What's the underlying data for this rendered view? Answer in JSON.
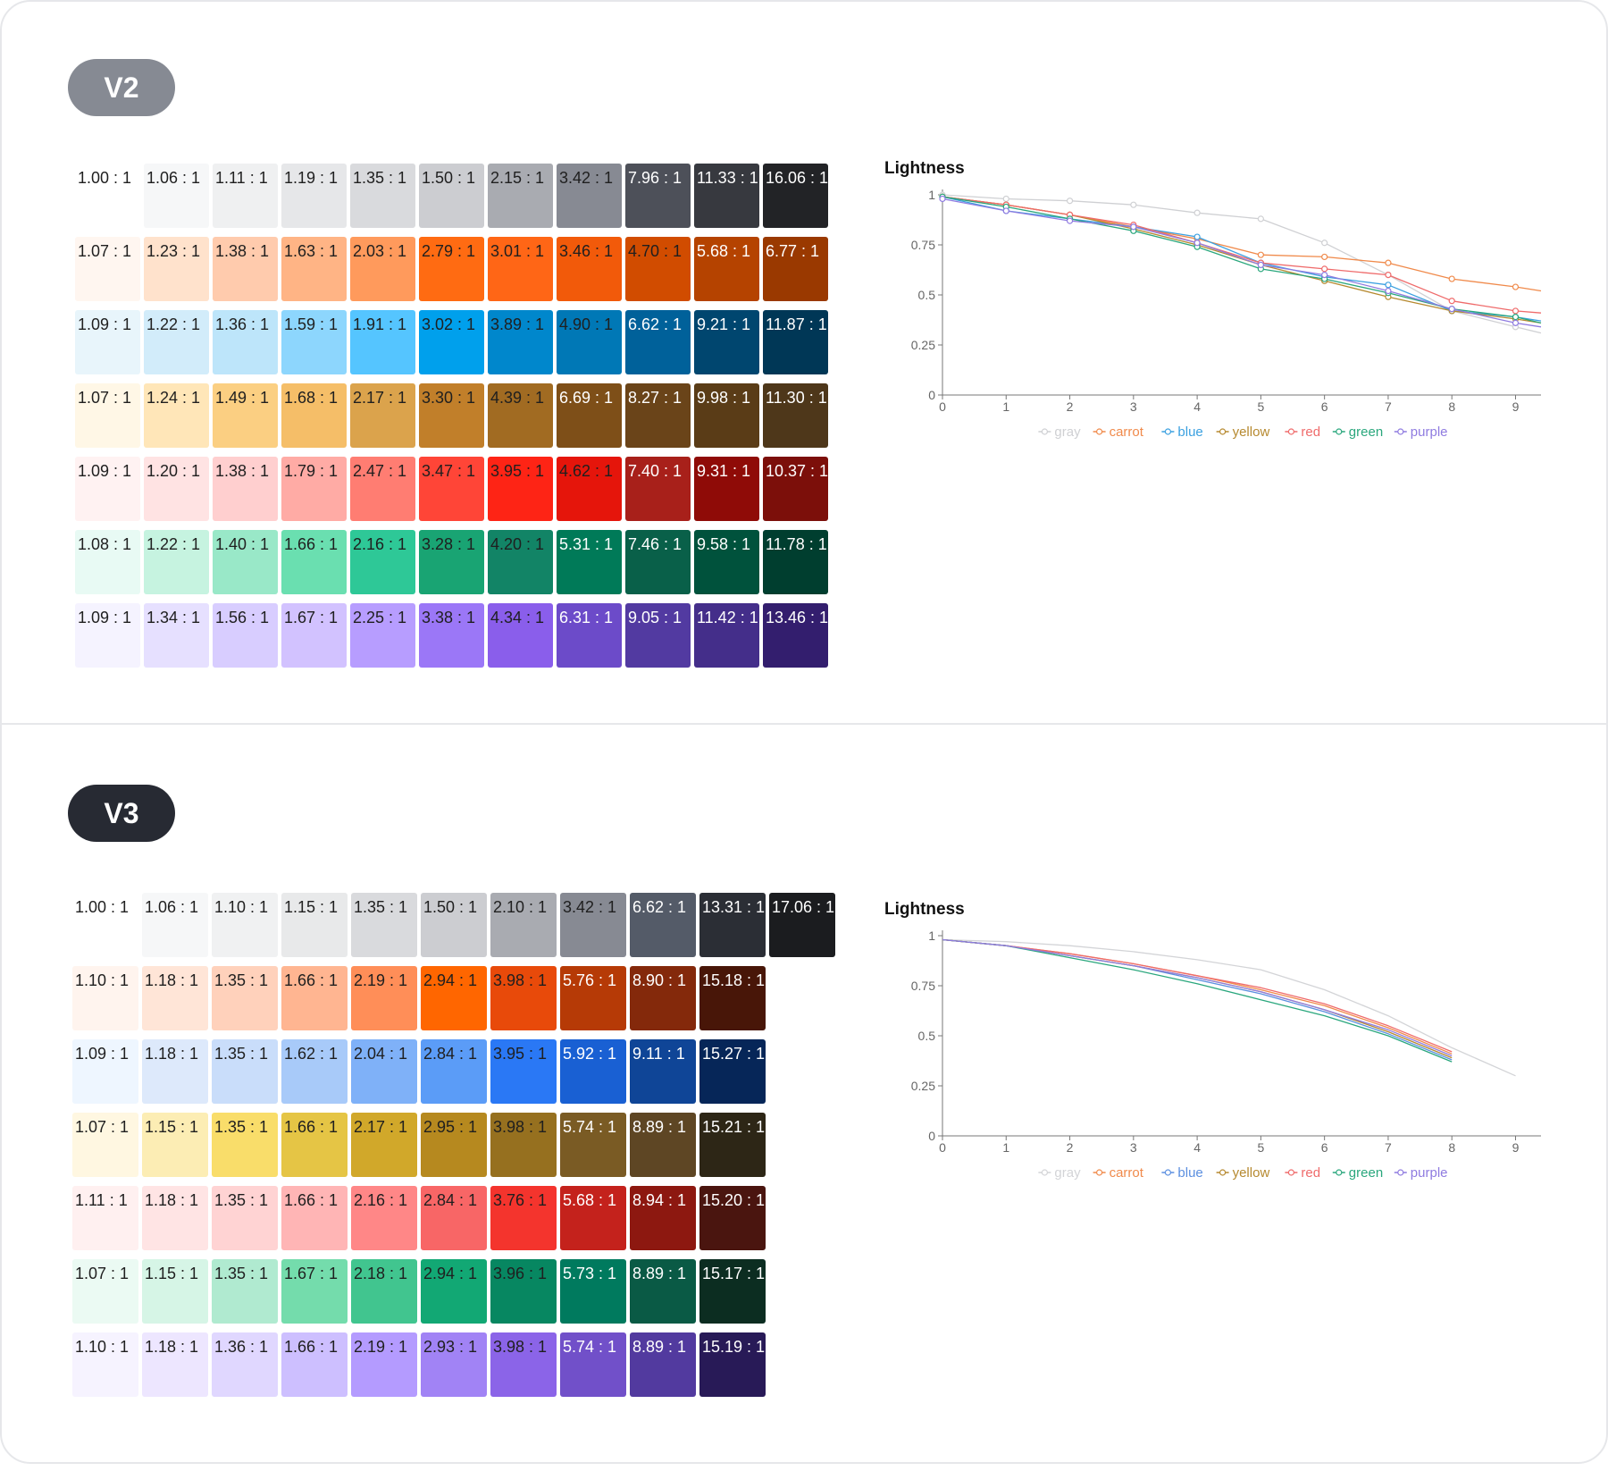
{
  "v2": {
    "badge": "V2",
    "badge_color": "#868a93",
    "rows": [
      {
        "name": "gray",
        "colors": [
          "#ffffff",
          "#f6f7f8",
          "#eff0f1",
          "#e6e7e9",
          "#d9dadd",
          "#cccdd1",
          "#a9abb1",
          "#878a93",
          "#4d5059",
          "#37393f",
          "#222326"
        ],
        "ratios": [
          "1.00 : 1",
          "1.06 : 1",
          "1.11 : 1",
          "1.19 : 1",
          "1.35 : 1",
          "1.50 : 1",
          "2.15 : 1",
          "3.42 : 1",
          "7.96 : 1",
          "11.33 : 1",
          "16.06 : 1"
        ]
      },
      {
        "name": "carrot",
        "colors": [
          "#fff6f0",
          "#ffe2cc",
          "#ffcbad",
          "#ffb485",
          "#ff9a5c",
          "#ff6b12",
          "#ff6616",
          "#f25a0a",
          "#d14c00",
          "#b54300",
          "#9a3900"
        ],
        "ratios": [
          "1.07 : 1",
          "1.23 : 1",
          "1.38 : 1",
          "1.63 : 1",
          "2.03 : 1",
          "2.79 : 1",
          "3.01 : 1",
          "3.46 : 1",
          "4.70 : 1",
          "5.68 : 1",
          "6.77 : 1"
        ]
      },
      {
        "name": "blue",
        "colors": [
          "#e8f5fb",
          "#d2ecfa",
          "#bde5fa",
          "#8dd6fd",
          "#55c5ff",
          "#00a0ec",
          "#0087cc",
          "#0078b6",
          "#00619a",
          "#00466f",
          "#003756"
        ],
        "ratios": [
          "1.09 : 1",
          "1.22 : 1",
          "1.36 : 1",
          "1.59 : 1",
          "1.91 : 1",
          "3.02 : 1",
          "3.89 : 1",
          "4.90 : 1",
          "6.62 : 1",
          "9.21 : 1",
          "11.87 : 1"
        ]
      },
      {
        "name": "yellow",
        "colors": [
          "#fff7e6",
          "#ffe6b8",
          "#fbcf82",
          "#f5be68",
          "#dba34c",
          "#c17f2a",
          "#a16b22",
          "#7e4f18",
          "#6a4419",
          "#5a3c17",
          "#4e371a"
        ],
        "ratios": [
          "1.07 : 1",
          "1.24 : 1",
          "1.49 : 1",
          "1.68 : 1",
          "2.17 : 1",
          "3.30 : 1",
          "4.39 : 1",
          "6.69 : 1",
          "8.27 : 1",
          "9.98 : 1",
          "11.30 : 1"
        ]
      },
      {
        "name": "red",
        "colors": [
          "#fff2f2",
          "#ffe3e3",
          "#ffcfcf",
          "#ffaba5",
          "#ff7d72",
          "#ff4537",
          "#fe2415",
          "#e5150b",
          "#a8201a",
          "#8f0b07",
          "#7c0f0a"
        ],
        "ratios": [
          "1.09 : 1",
          "1.20 : 1",
          "1.38 : 1",
          "1.79 : 1",
          "2.47 : 1",
          "3.47 : 1",
          "3.95 : 1",
          "4.62 : 1",
          "7.40 : 1",
          "9.31 : 1",
          "10.37 : 1"
        ]
      },
      {
        "name": "green",
        "colors": [
          "#e8faf4",
          "#c6f3e0",
          "#99e8c8",
          "#6adfb0",
          "#2ec897",
          "#19a473",
          "#128466",
          "#007a58",
          "#096049",
          "#00523c",
          "#003e2f"
        ],
        "ratios": [
          "1.08 : 1",
          "1.22 : 1",
          "1.40 : 1",
          "1.66 : 1",
          "2.16 : 1",
          "3.28 : 1",
          "4.20 : 1",
          "5.31 : 1",
          "7.46 : 1",
          "9.58 : 1",
          "11.78 : 1"
        ]
      },
      {
        "name": "purple",
        "colors": [
          "#f5f3ff",
          "#e6e0ff",
          "#d8cdff",
          "#d2c2ff",
          "#b79dff",
          "#9b77f7",
          "#8a5eeb",
          "#6c4bc9",
          "#523aa1",
          "#442e8a",
          "#331e6e"
        ],
        "ratios": [
          "1.09 : 1",
          "1.34 : 1",
          "1.56 : 1",
          "1.67 : 1",
          "2.25 : 1",
          "3.38 : 1",
          "4.34 : 1",
          "6.31 : 1",
          "9.05 : 1",
          "11.42 : 1",
          "13.46 : 1"
        ]
      }
    ]
  },
  "v3": {
    "badge": "V3",
    "badge_color": "#272a33",
    "rows": [
      {
        "name": "gray",
        "colors": [
          "#ffffff",
          "#f6f7f8",
          "#f0f1f2",
          "#e8e9ea",
          "#d9dadd",
          "#cccdd1",
          "#a9abb1",
          "#878a93",
          "#545b68",
          "#2b2e35",
          "#1b1c1f"
        ],
        "ratios": [
          "1.00 : 1",
          "1.06 : 1",
          "1.10 : 1",
          "1.15 : 1",
          "1.35 : 1",
          "1.50 : 1",
          "2.10 : 1",
          "3.42 : 1",
          "6.62 : 1",
          "13.31 : 1",
          "17.06 : 1"
        ]
      },
      {
        "name": "carrot",
        "colors": [
          "#fff4ee",
          "#ffe5d7",
          "#ffd1bb",
          "#ffb591",
          "#ff8e58",
          "#ff6600",
          "#e84a0a",
          "#b63a06",
          "#84290b",
          "#481608"
        ],
        "ratios": [
          "1.10 : 1",
          "1.18 : 1",
          "1.35 : 1",
          "1.66 : 1",
          "2.19 : 1",
          "2.94 : 1",
          "3.98 : 1",
          "5.76 : 1",
          "8.90 : 1",
          "15.18 : 1"
        ]
      },
      {
        "name": "blue",
        "colors": [
          "#eef6ff",
          "#dde9fb",
          "#c9ddfa",
          "#a8caf9",
          "#7fb1f8",
          "#5b9cf7",
          "#2a78f5",
          "#1960d3",
          "#0f4597",
          "#062658"
        ],
        "ratios": [
          "1.09 : 1",
          "1.18 : 1",
          "1.35 : 1",
          "1.62 : 1",
          "2.04 : 1",
          "2.84 : 1",
          "3.95 : 1",
          "5.92 : 1",
          "9.11 : 1",
          "15.27 : 1"
        ]
      },
      {
        "name": "yellow",
        "colors": [
          "#fff7e1",
          "#fcedb4",
          "#f9dd6a",
          "#e5c545",
          "#d1a82a",
          "#b6891f",
          "#96701f",
          "#7a5b24",
          "#5e4624",
          "#2d2616"
        ],
        "ratios": [
          "1.07 : 1",
          "1.15 : 1",
          "1.35 : 1",
          "1.66 : 1",
          "2.17 : 1",
          "2.95 : 1",
          "3.98 : 1",
          "5.74 : 1",
          "8.89 : 1",
          "15.21 : 1"
        ]
      },
      {
        "name": "red",
        "colors": [
          "#fff0f0",
          "#ffe4e4",
          "#ffd3d3",
          "#ffb5b5",
          "#ff8787",
          "#f86666",
          "#f4342d",
          "#c4221c",
          "#8d1810",
          "#4a150f"
        ],
        "ratios": [
          "1.11 : 1",
          "1.18 : 1",
          "1.35 : 1",
          "1.66 : 1",
          "2.16 : 1",
          "2.84 : 1",
          "3.76 : 1",
          "5.68 : 1",
          "8.94 : 1",
          "15.20 : 1"
        ]
      },
      {
        "name": "green",
        "colors": [
          "#ebfaf3",
          "#d6f5e6",
          "#b0ead0",
          "#74dcac",
          "#41c58f",
          "#12a874",
          "#078761",
          "#007a5e",
          "#0a5a45",
          "#0c2d21"
        ],
        "ratios": [
          "1.07 : 1",
          "1.15 : 1",
          "1.35 : 1",
          "1.67 : 1",
          "2.18 : 1",
          "2.94 : 1",
          "3.96 : 1",
          "5.73 : 1",
          "8.89 : 1",
          "15.17 : 1"
        ]
      },
      {
        "name": "purple",
        "colors": [
          "#f6f3ff",
          "#ede6ff",
          "#e0d7ff",
          "#cdbfff",
          "#b49bff",
          "#a183f5",
          "#8b64e8",
          "#7150c9",
          "#523a9f",
          "#281a57"
        ],
        "ratios": [
          "1.10 : 1",
          "1.18 : 1",
          "1.36 : 1",
          "1.66 : 1",
          "2.19 : 1",
          "2.93 : 1",
          "3.98 : 1",
          "5.74 : 1",
          "8.89 : 1",
          "15.19 : 1"
        ]
      }
    ]
  },
  "chart_data": [
    {
      "type": "line",
      "title": "Lightness",
      "x": [
        0,
        1,
        2,
        3,
        4,
        5,
        6,
        7,
        8,
        9,
        9.4
      ],
      "yticks": [
        "0",
        "0.25",
        "0.5",
        "0.75",
        "1"
      ],
      "xticks": [
        "0",
        "1",
        "2",
        "3",
        "4",
        "5",
        "6",
        "7",
        "8",
        "9"
      ],
      "ylim": [
        0,
        1
      ],
      "xlim": [
        0,
        9.4
      ],
      "markers": true,
      "legend_position": "bottom",
      "series": [
        {
          "name": "gray",
          "color": "#cfd0d3",
          "values": [
            1.0,
            0.98,
            0.97,
            0.95,
            0.91,
            0.88,
            0.76,
            0.6,
            0.42,
            0.34,
            0.31
          ]
        },
        {
          "name": "carrot",
          "color": "#f08a4b",
          "values": [
            0.99,
            0.95,
            0.9,
            0.84,
            0.78,
            0.7,
            0.69,
            0.66,
            0.58,
            0.54,
            0.52
          ]
        },
        {
          "name": "blue",
          "color": "#3ba0e0",
          "values": [
            0.99,
            0.92,
            0.88,
            0.84,
            0.79,
            0.66,
            0.59,
            0.55,
            0.42,
            0.39,
            0.37
          ]
        },
        {
          "name": "yellow",
          "color": "#b6892f",
          "values": [
            0.99,
            0.95,
            0.9,
            0.83,
            0.75,
            0.65,
            0.57,
            0.49,
            0.42,
            0.38,
            0.36
          ]
        },
        {
          "name": "red",
          "color": "#ef6b6b",
          "values": [
            0.99,
            0.95,
            0.9,
            0.85,
            0.76,
            0.66,
            0.63,
            0.6,
            0.47,
            0.42,
            0.41
          ]
        },
        {
          "name": "green",
          "color": "#2aa77d",
          "values": [
            0.99,
            0.94,
            0.88,
            0.82,
            0.74,
            0.63,
            0.58,
            0.51,
            0.43,
            0.39,
            0.36
          ]
        },
        {
          "name": "purple",
          "color": "#8f7be0",
          "values": [
            0.98,
            0.92,
            0.87,
            0.84,
            0.76,
            0.65,
            0.6,
            0.52,
            0.43,
            0.36,
            0.34
          ]
        }
      ]
    },
    {
      "type": "line",
      "title": "Lightness",
      "x": [
        0,
        1,
        2,
        3,
        4,
        5,
        6,
        7,
        8,
        9,
        9.4
      ],
      "yticks": [
        "0",
        "0.25",
        "0.5",
        "0.75",
        "1"
      ],
      "xticks": [
        "0",
        "1",
        "2",
        "3",
        "4",
        "5",
        "6",
        "7",
        "8",
        "9"
      ],
      "ylim": [
        0,
        1
      ],
      "xlim": [
        0,
        9.4
      ],
      "markers": false,
      "legend_position": "bottom",
      "series": [
        {
          "name": "gray",
          "color": "#d3d4d7",
          "values": [
            0.98,
            0.97,
            0.95,
            0.92,
            0.88,
            0.83,
            0.73,
            0.6,
            0.44,
            0.3,
            null
          ]
        },
        {
          "name": "carrot",
          "color": "#f08a4b",
          "values": [
            0.98,
            0.95,
            0.91,
            0.86,
            0.8,
            0.73,
            0.65,
            0.54,
            0.41,
            null,
            null
          ]
        },
        {
          "name": "blue",
          "color": "#5b8fe0",
          "values": [
            0.98,
            0.95,
            0.9,
            0.85,
            0.78,
            0.71,
            0.62,
            0.51,
            0.38,
            null,
            null
          ]
        },
        {
          "name": "yellow",
          "color": "#b6892f",
          "values": [
            0.98,
            0.95,
            0.9,
            0.85,
            0.79,
            0.72,
            0.63,
            0.52,
            0.39,
            null,
            null
          ]
        },
        {
          "name": "red",
          "color": "#ef6b6b",
          "values": [
            0.98,
            0.95,
            0.91,
            0.86,
            0.8,
            0.74,
            0.66,
            0.55,
            0.42,
            null,
            null
          ]
        },
        {
          "name": "green",
          "color": "#2aa77d",
          "values": [
            0.98,
            0.95,
            0.89,
            0.83,
            0.76,
            0.68,
            0.6,
            0.5,
            0.37,
            null,
            null
          ]
        },
        {
          "name": "purple",
          "color": "#8f7be0",
          "values": [
            0.98,
            0.95,
            0.9,
            0.85,
            0.79,
            0.72,
            0.63,
            0.53,
            0.4,
            null,
            null
          ]
        }
      ]
    }
  ]
}
